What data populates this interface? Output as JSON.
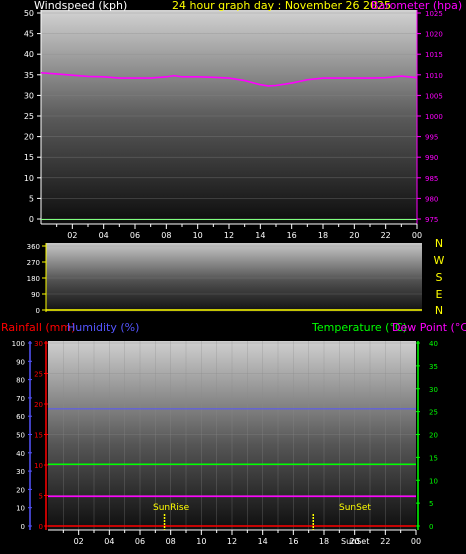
{
  "top": {
    "title": "24 hour graph day : November 26 2025",
    "left_label": "Windspeed (kph)",
    "right_label": "Barometer (hpa)"
  },
  "middle": {
    "direction_labels": [
      "N",
      "W",
      "S",
      "E",
      "N"
    ]
  },
  "bottom": {
    "rain_label": "Rainfall (mm)",
    "humidity_label": "Humidity (%)",
    "temp_label": "Temperature (°C)",
    "dew_label": "Dew Point (°C)",
    "sunrise_label": "SunRise",
    "sunset_label": "SunSet",
    "sunset_time_label": "SunSet"
  },
  "colors": {
    "windspeed": "#ffffff",
    "barometer": "#ff00ff",
    "title": "#ffff00",
    "humidity": "#5555ff",
    "rainfall": "#ff0000",
    "temperature": "#00ff00",
    "dewpoint": "#ff00ff",
    "direction_axis": "#ffff00"
  },
  "chart_data": [
    {
      "type": "line",
      "title": "24 hour graph day : November 26 2025",
      "xticks": [
        "02",
        "04",
        "06",
        "08",
        "10",
        "12",
        "14",
        "16",
        "18",
        "20",
        "22",
        "00"
      ],
      "y_left": {
        "label": "Windspeed (kph)",
        "ticks": [
          0,
          5,
          10,
          15,
          20,
          25,
          30,
          35,
          40,
          45,
          50
        ],
        "range": [
          0,
          50
        ]
      },
      "y_right": {
        "label": "Barometer (hpa)",
        "ticks": [
          975,
          980,
          985,
          990,
          995,
          1000,
          1005,
          1010,
          1015,
          1020,
          1025
        ],
        "range": [
          975,
          1025
        ]
      },
      "series": [
        {
          "name": "Windspeed (kph)",
          "axis": "left",
          "x": [
            0,
            24
          ],
          "values": [
            0,
            0
          ]
        },
        {
          "name": "Barometer (hpa)",
          "axis": "right",
          "x": [
            0,
            1,
            2,
            3,
            4,
            5,
            6,
            7,
            8,
            8.5,
            9,
            10,
            11,
            12,
            13,
            14,
            14.5,
            15,
            16,
            17,
            18,
            19,
            20,
            21,
            22,
            23,
            24
          ],
          "values": [
            1010.5,
            1010.2,
            1009.9,
            1009.6,
            1009.5,
            1009.2,
            1009.2,
            1009.2,
            1009.5,
            1009.8,
            1009.5,
            1009.5,
            1009.4,
            1009.2,
            1008.6,
            1007.6,
            1007.3,
            1007.4,
            1008.0,
            1008.8,
            1009.2,
            1009.2,
            1009.2,
            1009.2,
            1009.3,
            1009.7,
            1009.3
          ]
        }
      ]
    },
    {
      "type": "scatter",
      "y_left": {
        "ticks": [
          0,
          90,
          180,
          270,
          360
        ],
        "range": [
          0,
          360
        ]
      },
      "direction_labels": [
        "N",
        "W",
        "S",
        "E",
        "N"
      ],
      "series": [
        {
          "name": "Wind Direction",
          "x": [
            0,
            24
          ],
          "values": [
            0,
            0
          ]
        }
      ]
    },
    {
      "type": "line",
      "xticks": [
        "02",
        "04",
        "06",
        "08",
        "10",
        "12",
        "14",
        "16",
        "18",
        "20",
        "22",
        "00"
      ],
      "y_humidity": {
        "label": "Humidity (%)",
        "ticks": [
          0,
          10,
          20,
          30,
          40,
          50,
          60,
          70,
          80,
          90,
          100
        ],
        "range": [
          0,
          100
        ]
      },
      "y_rain": {
        "label": "Rainfall (mm)",
        "ticks": [
          0,
          5,
          10,
          15,
          20,
          25,
          30
        ],
        "range": [
          0,
          30
        ]
      },
      "y_temp": {
        "label": "Temperature (°C)",
        "ticks": [
          0,
          5,
          10,
          15,
          20,
          25,
          30,
          35,
          40
        ],
        "range": [
          0,
          40
        ]
      },
      "series": [
        {
          "name": "Humidity (%)",
          "axis": "humidity",
          "x": [
            0,
            24
          ],
          "values": [
            64,
            64
          ]
        },
        {
          "name": "Rainfall (mm)",
          "axis": "rain",
          "x": [
            0,
            24
          ],
          "values": [
            0,
            0
          ]
        },
        {
          "name": "Temperature (°C)",
          "axis": "temp",
          "x": [
            0,
            24
          ],
          "values": [
            13.5,
            13.5
          ]
        },
        {
          "name": "Dew Point (°C)",
          "axis": "temp",
          "x": [
            0,
            24
          ],
          "values": [
            6.5,
            6.5
          ]
        }
      ],
      "annotations": [
        {
          "label": "SunRise",
          "x": 7.6
        },
        {
          "label": "SunSet",
          "x": 17.3
        }
      ]
    }
  ]
}
